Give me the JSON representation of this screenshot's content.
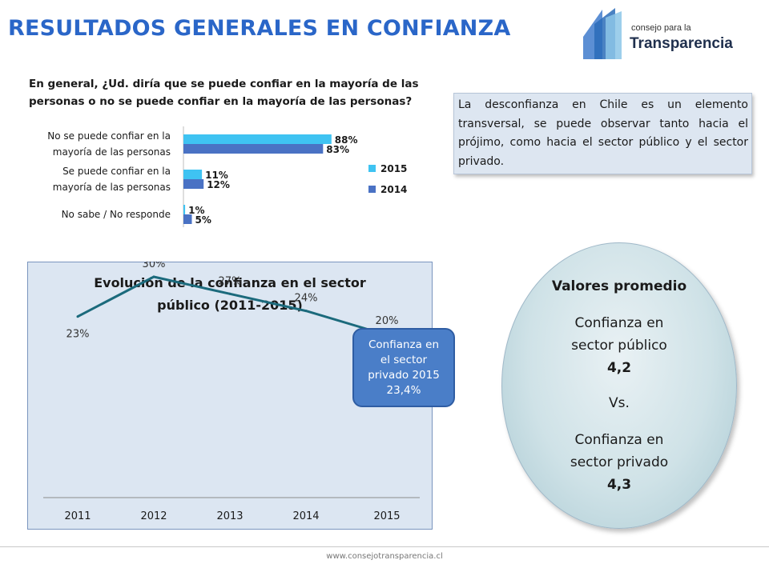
{
  "title": "RESULTADOS GENERALES EN CONFIANZA",
  "logo": {
    "line1": "consejo para la",
    "line2": "Transparencia"
  },
  "question": "En general, ¿Ud. diría que se puede confiar en la mayoría de las personas o no se puede confiar en la mayoría de las personas?",
  "note": "La desconfianza en Chile es un elemento transversal, se puede observar tanto hacia el prójimo, como hacia el sector público y el sector privado.",
  "colors": {
    "title": "#2a66c8",
    "s2015": "#3fc3f2",
    "s2014": "#4a72c4",
    "line": "#1b6a7c"
  },
  "chart_data": [
    {
      "type": "bar",
      "orientation": "horizontal",
      "categories": [
        [
          "No se puede confiar en la",
          "mayoría de las personas"
        ],
        [
          "Se puede confiar en la",
          "mayoría de las personas"
        ],
        [
          "No sabe / No responde"
        ]
      ],
      "series": [
        {
          "name": "2015",
          "values": [
            88,
            11,
            1
          ],
          "labels": [
            "88%",
            "11%",
            "1%"
          ]
        },
        {
          "name": "2014",
          "values": [
            83,
            12,
            5
          ],
          "labels": [
            "83%",
            "12%",
            "5%"
          ]
        }
      ],
      "xlim": [
        0,
        100
      ],
      "legend": "right"
    },
    {
      "type": "line",
      "title": [
        "Evolución de la confianza en el sector",
        "público (2011-2015)"
      ],
      "x": [
        "2011",
        "2012",
        "2013",
        "2014",
        "2015"
      ],
      "values": [
        23,
        30,
        27,
        24,
        20
      ],
      "labels": [
        "23%",
        "30%",
        "27%",
        "24%",
        "20%"
      ],
      "ylim": [
        0,
        50
      ],
      "grid": false
    }
  ],
  "callout": [
    "Confianza en",
    "el sector",
    "privado 2015",
    "23,4%"
  ],
  "summary": {
    "heading": "Valores promedio",
    "public_label": [
      "Confianza en",
      "sector público"
    ],
    "public_value": "4,2",
    "vs": "Vs.",
    "private_label": [
      "Confianza en",
      "sector privado"
    ],
    "private_value": "4,3"
  },
  "footer": "www.consejotransparencia.cl"
}
